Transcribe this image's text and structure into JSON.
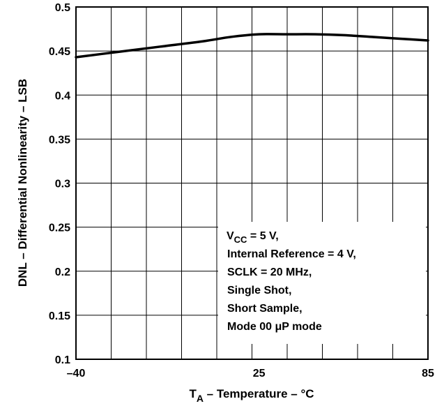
{
  "chart_data": {
    "type": "line",
    "title": "",
    "xlabel": {
      "main": "T",
      "sub": "A",
      "rest": " – Temperature – °C"
    },
    "ylabel": "DNL – Differential Nonlinearity – LSB",
    "xlim": [
      -40,
      85
    ],
    "ylim": [
      0.1,
      0.5
    ],
    "x_tick_labels": [
      "–40",
      "25",
      "85"
    ],
    "y_tick_labels": [
      "0.1",
      "0.15",
      "0.2",
      "0.25",
      "0.3",
      "0.35",
      "0.4",
      "0.45",
      "0.5"
    ],
    "y_tick_values": [
      0.1,
      0.15,
      0.2,
      0.25,
      0.3,
      0.35,
      0.4,
      0.45,
      0.5
    ],
    "grid": true,
    "series": [
      {
        "x": [
          -40,
          -25,
          -10,
          5,
          15,
          25,
          35,
          45,
          55,
          65,
          75,
          85
        ],
        "y": [
          0.443,
          0.449,
          0.455,
          0.461,
          0.466,
          0.469,
          0.469,
          0.469,
          0.468,
          0.466,
          0.464,
          0.462
        ],
        "color": "#000000"
      }
    ],
    "annotation": {
      "line1": {
        "main": "V",
        "sub": "CC",
        "rest": " = 5 V,"
      },
      "lines": [
        "Internal Reference = 4 V,",
        "SCLK = 20 MHz,",
        "Single Shot,",
        "Short Sample,",
        "Mode 00 μP mode"
      ]
    }
  }
}
